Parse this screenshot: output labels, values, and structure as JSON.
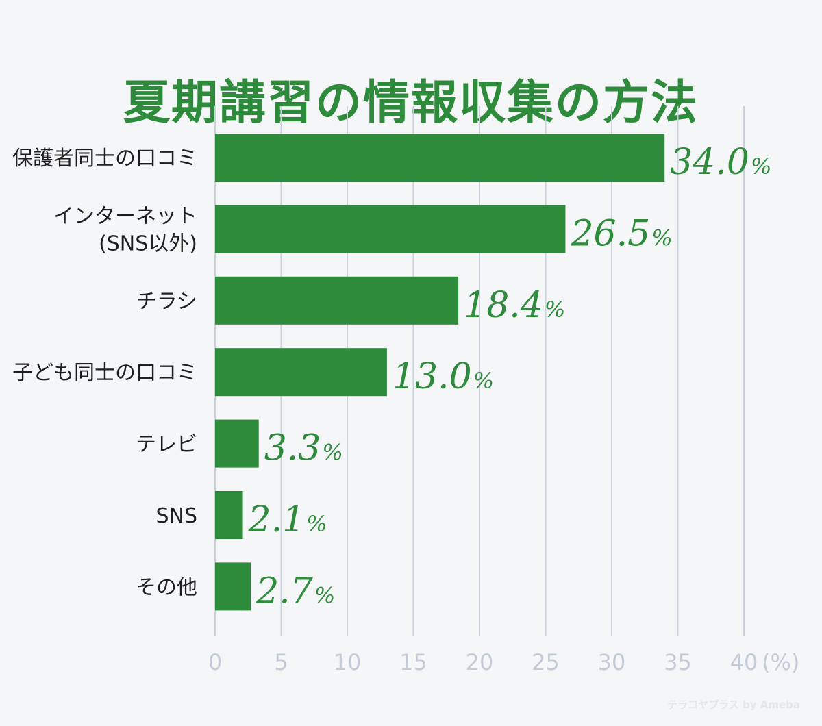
{
  "chart_data": {
    "type": "bar",
    "orientation": "horizontal",
    "title": "夏期講習の情報収集の方法",
    "categories": [
      "保護者同士の口コミ",
      "インターネット\n(SNS以外)",
      "チラシ",
      "子ども同士の口コミ",
      "テレビ",
      "SNS",
      "その他"
    ],
    "values": [
      34.0,
      26.5,
      18.4,
      13.0,
      3.3,
      2.1,
      2.7
    ],
    "value_labels": [
      "34.0",
      "26.5",
      "18.4",
      "13.0",
      "3.3",
      "2.1",
      "2.7"
    ],
    "value_suffix": "%",
    "x_ticks": [
      0,
      5,
      10,
      15,
      20,
      25,
      30,
      35,
      40
    ],
    "x_unit": "(%)",
    "xlim": [
      0,
      40
    ],
    "grid": true,
    "legend": "none",
    "bar_color": "#2e8b3b",
    "grid_color": "#c9d0dc"
  },
  "watermark": "テラコヤプラス by Ameba",
  "colors": {
    "accent": "#2e8b3b",
    "axis_text": "#c4cbd8",
    "label_text": "#1f1f1f"
  }
}
